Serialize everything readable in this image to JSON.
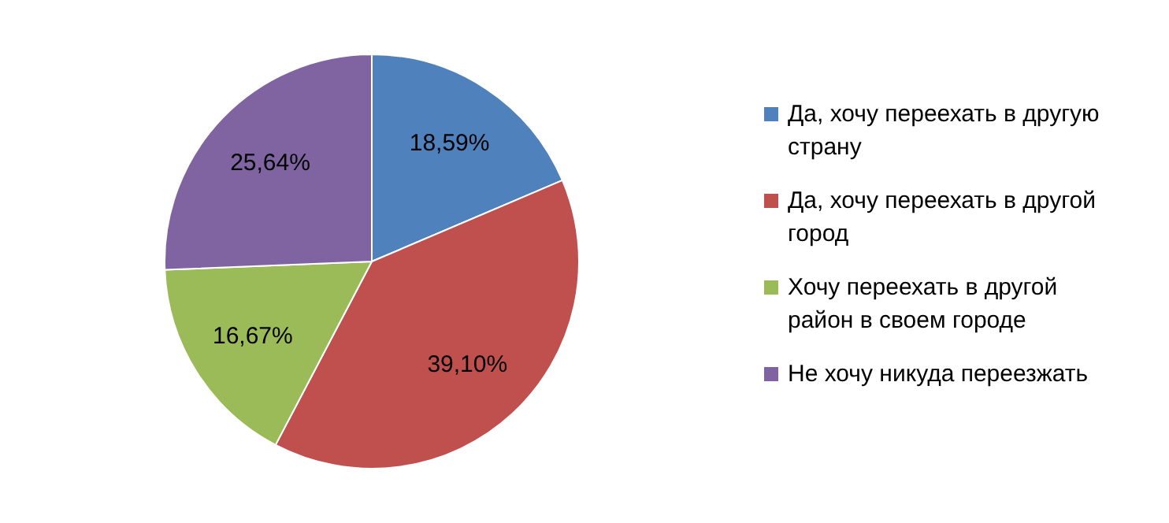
{
  "chart_data": {
    "type": "pie",
    "categories": [
      "Да, хочу переехать в другую страну",
      "Да, хочу переехать в другой город",
      "Хочу переехать в другой район в своем городе",
      "Не хочу никуда переезжать"
    ],
    "values": [
      18.59,
      39.1,
      16.67,
      25.64
    ],
    "colors": [
      "#4f81bd",
      "#c0504d",
      "#9bbb59",
      "#8064a2"
    ],
    "value_labels": [
      "18,59%",
      "39,10%",
      "16,67%",
      "25,64%"
    ],
    "legend": "right"
  }
}
